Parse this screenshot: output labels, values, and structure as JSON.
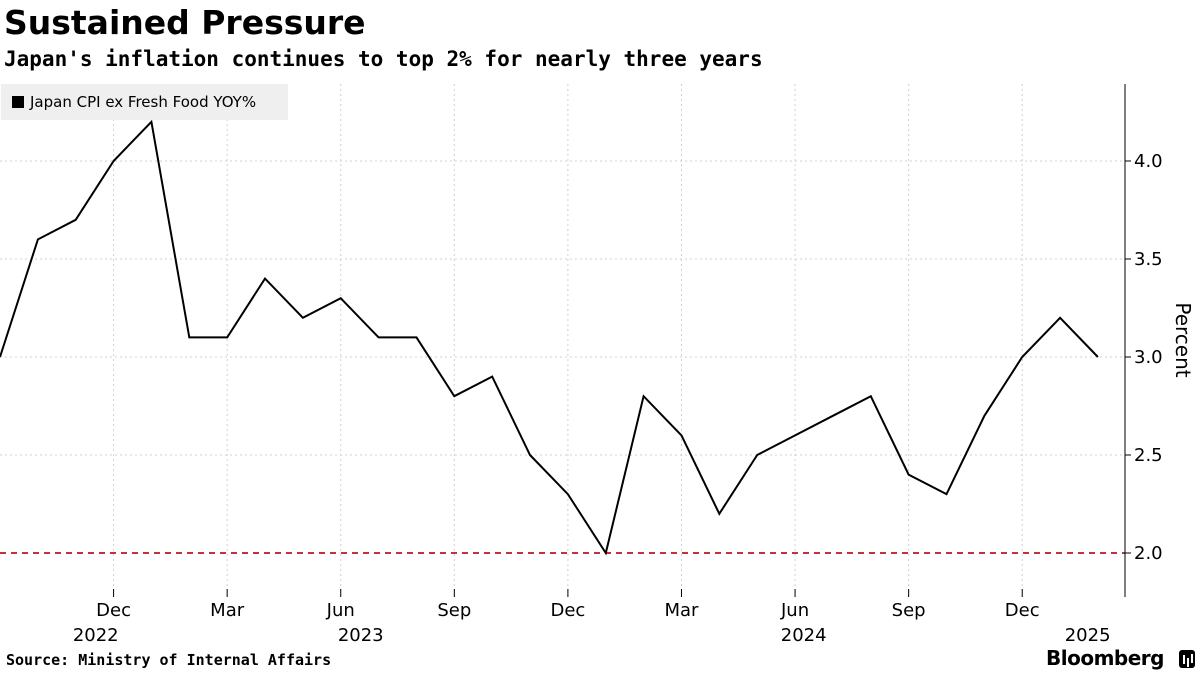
{
  "chart_data": {
    "type": "line",
    "title": "Sustained Pressure",
    "subtitle": "Japan's inflation continues to top 2% for nearly three years",
    "series": [
      {
        "name": "Japan CPI ex Fresh Food YOY%",
        "color": "#000000",
        "values": [
          3.0,
          3.6,
          3.7,
          4.0,
          4.2,
          3.1,
          3.1,
          3.4,
          3.2,
          3.3,
          3.1,
          3.1,
          2.8,
          2.9,
          2.5,
          2.3,
          2.0,
          2.8,
          2.6,
          2.2,
          2.5,
          2.6,
          2.7,
          2.8,
          2.4,
          2.3,
          2.7,
          3.0,
          3.2,
          3.0
        ]
      }
    ],
    "x_start": "2022-09",
    "x_ticks": [
      {
        "index": 3,
        "month": "Dec",
        "year": "2022"
      },
      {
        "index": 6,
        "month": "Mar",
        "year": ""
      },
      {
        "index": 9,
        "month": "Jun",
        "year": "2023"
      },
      {
        "index": 12,
        "month": "Sep",
        "year": ""
      },
      {
        "index": 15,
        "month": "Dec",
        "year": ""
      },
      {
        "index": 18,
        "month": "Mar",
        "year": ""
      },
      {
        "index": 21,
        "month": "Jun",
        "year": "2024"
      },
      {
        "index": 24,
        "month": "Sep",
        "year": ""
      },
      {
        "index": 27,
        "month": "Dec",
        "year": ""
      },
      {
        "index": 29,
        "month": "",
        "year": "2025"
      }
    ],
    "year_labels": [
      {
        "label": "2022",
        "index": 2.0
      },
      {
        "label": "2023",
        "index": 9.0
      },
      {
        "label": "2024",
        "index": 20.7
      },
      {
        "label": "2025",
        "index": 28.2
      }
    ],
    "y_ticks": [
      "2.0",
      "2.5",
      "3.0",
      "3.5",
      "4.0"
    ],
    "ylim": [
      1.9,
      4.4
    ],
    "ylabel": "Percent",
    "reference_line": {
      "value": 2.0,
      "color": "#c8303c",
      "style": "dashed"
    }
  },
  "footer": {
    "source": "Source: Ministry of Internal Affairs",
    "brand": "Bloomberg"
  }
}
